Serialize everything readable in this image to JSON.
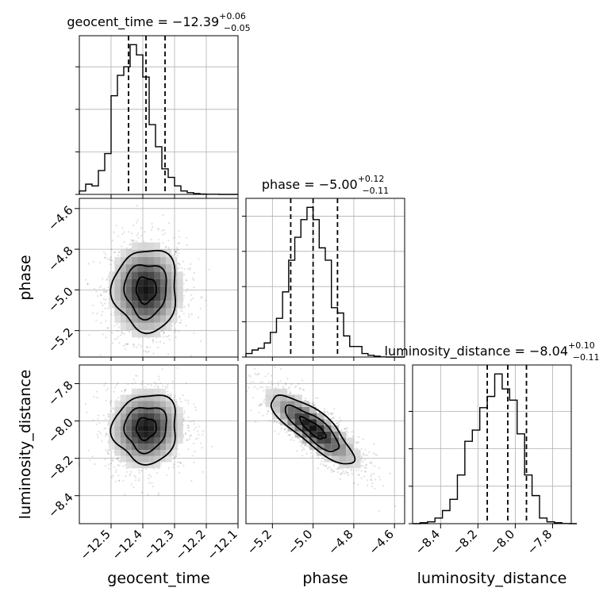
{
  "chart_data": {
    "type": "corner",
    "parameters": [
      {
        "name": "geocent_time",
        "axis_label": "geocent_time",
        "title_main": "geocent_time = −12.39",
        "title_sup": "+0.06",
        "title_sub": "−0.05",
        "range": [
          -12.6,
          -12.1
        ],
        "ticks": [
          -12.5,
          -12.4,
          -12.3,
          -12.2,
          -12.1
        ],
        "tick_labels": [
          "−12.5",
          "−12.4",
          "−12.3",
          "−12.2",
          "−12.1"
        ],
        "quantiles": [
          -12.445,
          -12.39,
          -12.33
        ],
        "hist_edges_start": -12.6,
        "hist_bin_width": 0.02,
        "hist": [
          0.02,
          0.06,
          0.05,
          0.14,
          0.24,
          0.58,
          0.7,
          0.75,
          0.88,
          0.82,
          0.69,
          0.41,
          0.28,
          0.15,
          0.1,
          0.05,
          0.02,
          0.01,
          0.005,
          0.002,
          0.001,
          0.001,
          0.0,
          0.0,
          0.0
        ],
        "hist_ticks": [
          0,
          0.25,
          0.5,
          0.75
        ]
      },
      {
        "name": "phase",
        "axis_label": "phase",
        "title_main": "phase = −5.00",
        "title_sup": "+0.12",
        "title_sub": "−0.11",
        "range": [
          -5.33,
          -4.55
        ],
        "ticks": [
          -5.2,
          -5.0,
          -4.8,
          -4.6
        ],
        "tick_labels": [
          "−5.2",
          "−5.0",
          "−4.8",
          "−4.6"
        ],
        "quantiles": [
          -5.11,
          -5.0,
          -4.88
        ],
        "hist_edges_start": -5.33,
        "hist_bin_width": 0.03,
        "hist": [
          0.02,
          0.04,
          0.05,
          0.08,
          0.14,
          0.22,
          0.37,
          0.55,
          0.68,
          0.78,
          0.85,
          0.78,
          0.62,
          0.55,
          0.28,
          0.25,
          0.12,
          0.06,
          0.06,
          0.02,
          0.01,
          0.005,
          0.001,
          0.0,
          0.0,
          0.0
        ],
        "hist_ticks": [
          0,
          0.2,
          0.4,
          0.6,
          0.8
        ]
      },
      {
        "name": "luminosity_distance",
        "axis_label": "luminosity_distance",
        "title_main": "luminosity_distance = −8.04",
        "title_sup": "+0.10",
        "title_sub": "−0.11",
        "range": [
          -8.55,
          -7.7
        ],
        "ticks": [
          -8.4,
          -8.2,
          -8.0,
          -7.8
        ],
        "tick_labels": [
          "−8.4",
          "−8.2",
          "−8.0",
          "−7.8"
        ],
        "quantiles": [
          -8.15,
          -8.04,
          -7.94
        ],
        "hist_edges_start": -8.55,
        "hist_bin_width": 0.04,
        "hist": [
          0.0,
          0.005,
          0.01,
          0.03,
          0.07,
          0.13,
          0.26,
          0.44,
          0.5,
          0.62,
          0.68,
          0.8,
          0.72,
          0.66,
          0.48,
          0.26,
          0.15,
          0.03,
          0.01,
          0.005,
          0.001,
          0.0
        ],
        "hist_ticks": [
          0,
          0.2,
          0.4,
          0.6
        ]
      }
    ],
    "correlations": {
      "geocent_time|phase": 0.0,
      "geocent_time|luminosity_distance": 0.05,
      "phase|luminosity_distance": -0.82
    },
    "grid": true
  }
}
